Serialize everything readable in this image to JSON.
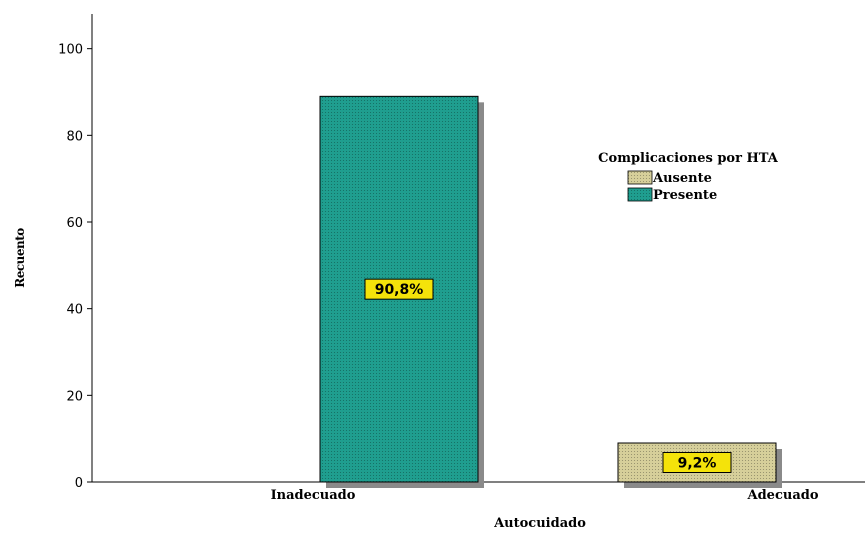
{
  "chart_data": {
    "type": "bar",
    "title": "",
    "xlabel": "Autocuidado",
    "ylabel": "Recuento",
    "categories": [
      "Inadecuado",
      "Adecuado"
    ],
    "ylim": [
      0,
      108
    ],
    "yticks": [
      0,
      20,
      40,
      60,
      80,
      100
    ],
    "legend": {
      "title": "Complicaciones por HTA",
      "position": "top-right",
      "entries": [
        {
          "name": "Ausente",
          "color": "#d6cf9a"
        },
        {
          "name": "Presente",
          "color": "#1f9e8f"
        }
      ]
    },
    "bars": [
      {
        "category": "Inadecuado",
        "series": "Presente",
        "value": 89,
        "label": "90,8%",
        "color": "#1f9e8f"
      },
      {
        "category": "Adecuado",
        "series": "Ausente",
        "value": 9,
        "label": "9,2%",
        "color": "#d6cf9a"
      }
    ],
    "data_label_color": "#f4e30a",
    "grid": false
  }
}
